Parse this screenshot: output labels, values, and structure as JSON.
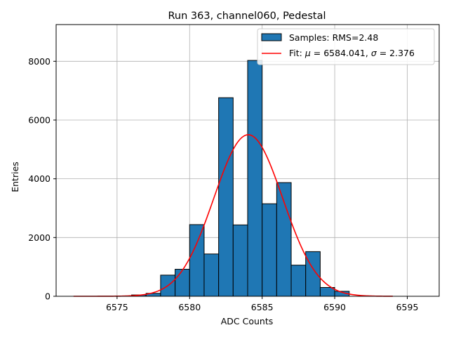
{
  "chart_data": {
    "type": "bar",
    "title": "Run 363, channel060, Pedestal",
    "xlabel": "ADC Counts",
    "ylabel": "Entries",
    "xlim": [
      6570.8,
      6597.2
    ],
    "ylim": [
      0,
      9250
    ],
    "xticks": [
      6575,
      6580,
      6585,
      6590,
      6595
    ],
    "yticks": [
      0,
      2000,
      4000,
      6000,
      8000
    ],
    "grid": true,
    "bar_color": "#1f77b4",
    "bar_edge_color": "#000000",
    "fit_color": "#ff0000",
    "histogram": {
      "bin_edges": [
        6576,
        6577,
        6578,
        6579,
        6580,
        6581,
        6582,
        6583,
        6584,
        6585,
        6586,
        6587,
        6588,
        6589,
        6590,
        6591
      ],
      "counts": [
        45,
        100,
        720,
        920,
        2440,
        1440,
        6760,
        2430,
        8030,
        3150,
        3870,
        1060,
        1520,
        300,
        170
      ]
    },
    "fit": {
      "mu": 6584.041,
      "sigma": 2.376,
      "amplitude": 5500,
      "x_range": [
        6572,
        6594
      ]
    },
    "legend": {
      "position": "top-right",
      "entries": [
        {
          "name": "Samples: RMS=2.48",
          "kind": "patch"
        },
        {
          "name": "Fit: μ = 6584.041, σ = 2.376",
          "kind": "line",
          "prefix": "Fit: ",
          "mu_symbol": "μ",
          "mu_text": " = 6584.041, ",
          "sigma_symbol": "σ",
          "sigma_text": " = 2.376"
        }
      ]
    }
  }
}
